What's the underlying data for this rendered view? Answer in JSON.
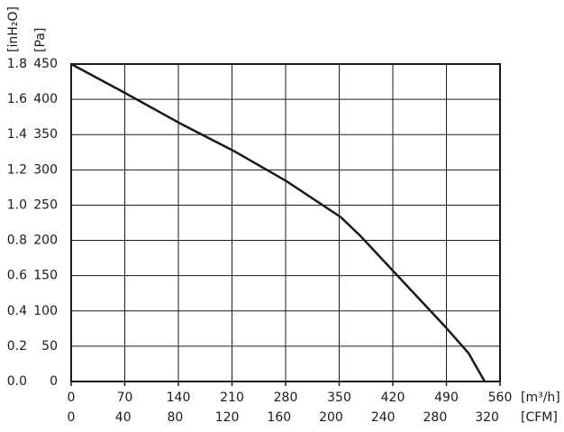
{
  "chart_data": {
    "type": "line",
    "x": [
      0,
      72,
      142,
      212,
      281,
      352,
      378,
      421,
      489,
      519,
      540
    ],
    "values": [
      450,
      408,
      366,
      327,
      284,
      233,
      206,
      156,
      77,
      40,
      0
    ],
    "color": "#1a1a1a",
    "xlim": [
      0,
      560
    ],
    "xticks": [
      0,
      70,
      140,
      210,
      280,
      350,
      420,
      490,
      560
    ],
    "ylim": [
      0,
      450
    ],
    "yticks": [
      0,
      50,
      100,
      150,
      200,
      250,
      300,
      350,
      400,
      450
    ],
    "x2lim": [
      0,
      330
    ],
    "x2ticks": [
      0,
      40,
      80,
      120,
      160,
      200,
      240,
      280,
      320
    ],
    "y2lim": [
      0,
      1.8
    ],
    "y2ticks": [
      {
        "value": 0,
        "label": "0.0"
      },
      {
        "value": 0.2,
        "label": "0.2"
      },
      {
        "value": 0.4,
        "label": "0.4"
      },
      {
        "value": 0.6,
        "label": "0.6"
      },
      {
        "value": 0.8,
        "label": "0.8"
      },
      {
        "value": 1.0,
        "label": "1.0"
      },
      {
        "value": 1.2,
        "label": "1.2"
      },
      {
        "value": 1.4,
        "label": "1.4"
      },
      {
        "value": 1.6,
        "label": "1.6"
      },
      {
        "value": 1.8,
        "label": "1.8"
      }
    ],
    "x_label": "[m³/h]",
    "x2_label": "[CFM]",
    "y_label": "[Pa]",
    "y2_label": "[inH₂O]",
    "grid": true
  }
}
